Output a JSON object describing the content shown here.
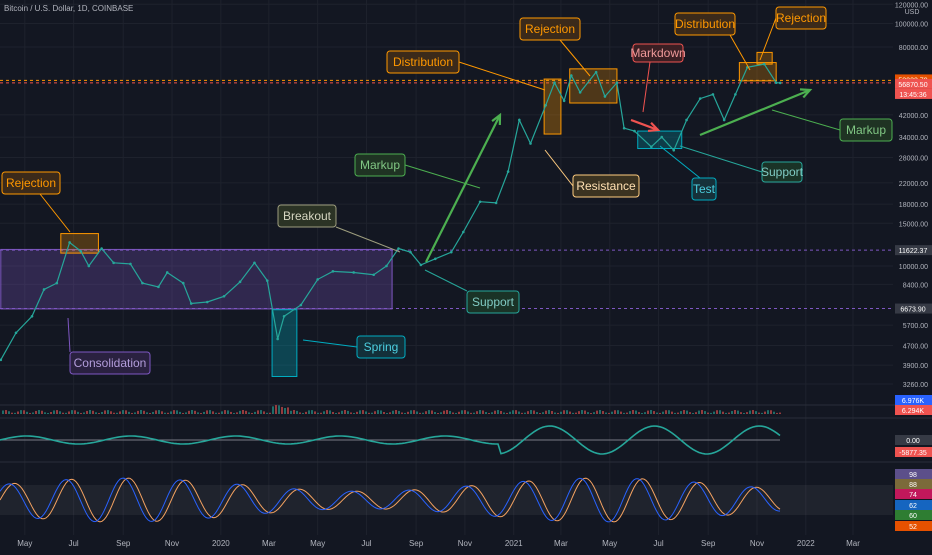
{
  "header": {
    "symbol_line": "Bitcoin / U.S. Dollar, 1D, COINBASE",
    "currency": "USD"
  },
  "colors": {
    "background": "#131722",
    "grid": "#1e222d",
    "candle_up": "#26a69a",
    "candle_down": "#ef5350",
    "consolidation": "#7e57c2",
    "spring": "#00acc1",
    "orange": "#ff9800",
    "green_arrow": "#4caf50",
    "price_line": "#ef5350"
  },
  "chart_data": [
    {
      "type": "line",
      "title": "Bitcoin / U.S. Dollar, 1D, COINBASE",
      "y_scale": "log",
      "ylim": [
        2800,
        125000
      ],
      "x_ticks": [
        "May",
        "Jul",
        "Sep",
        "Nov",
        "2020",
        "Mar",
        "May",
        "Jul",
        "Sep",
        "Nov",
        "2021",
        "Mar",
        "May",
        "Jul",
        "Sep",
        "Nov",
        "2022",
        "Mar"
      ],
      "y_ticks": [
        "120000.00",
        "100000.00",
        "80000.00",
        "58233.79",
        "56870.50",
        "42000.00",
        "34000.00",
        "28000.00",
        "22000.00",
        "18000.00",
        "15000.00",
        "11622.37",
        "10000.00",
        "8400.00",
        "6673.90",
        "5700.00",
        "4700.00",
        "3900.00",
        "3260.00"
      ],
      "series": [
        {
          "values": [
            {
              "x": "2019-04-01",
              "y": 4100
            },
            {
              "x": "2019-04-20",
              "y": 5300
            },
            {
              "x": "2019-05-10",
              "y": 6200
            },
            {
              "x": "2019-05-25",
              "y": 8000
            },
            {
              "x": "2019-06-10",
              "y": 8500
            },
            {
              "x": "2019-06-26",
              "y": 12500
            },
            {
              "x": "2019-07-10",
              "y": 11500
            },
            {
              "x": "2019-07-20",
              "y": 10000
            },
            {
              "x": "2019-08-05",
              "y": 11800
            },
            {
              "x": "2019-08-20",
              "y": 10300
            },
            {
              "x": "2019-09-10",
              "y": 10200
            },
            {
              "x": "2019-09-25",
              "y": 8500
            },
            {
              "x": "2019-10-15",
              "y": 8200
            },
            {
              "x": "2019-10-26",
              "y": 9400
            },
            {
              "x": "2019-11-15",
              "y": 8500
            },
            {
              "x": "2019-11-25",
              "y": 7000
            },
            {
              "x": "2019-12-15",
              "y": 7100
            },
            {
              "x": "2020-01-05",
              "y": 7500
            },
            {
              "x": "2020-01-25",
              "y": 8600
            },
            {
              "x": "2020-02-12",
              "y": 10300
            },
            {
              "x": "2020-02-28",
              "y": 8700
            },
            {
              "x": "2020-03-12",
              "y": 5000
            },
            {
              "x": "2020-03-20",
              "y": 6200
            },
            {
              "x": "2020-04-10",
              "y": 6900
            },
            {
              "x": "2020-05-01",
              "y": 8800
            },
            {
              "x": "2020-05-20",
              "y": 9500
            },
            {
              "x": "2020-06-15",
              "y": 9400
            },
            {
              "x": "2020-07-10",
              "y": 9200
            },
            {
              "x": "2020-07-26",
              "y": 10000
            },
            {
              "x": "2020-08-10",
              "y": 11800
            },
            {
              "x": "2020-08-25",
              "y": 11400
            },
            {
              "x": "2020-09-07",
              "y": 10100
            },
            {
              "x": "2020-09-25",
              "y": 10700
            },
            {
              "x": "2020-10-15",
              "y": 11400
            },
            {
              "x": "2020-10-30",
              "y": 13800
            },
            {
              "x": "2020-11-20",
              "y": 18400
            },
            {
              "x": "2020-12-10",
              "y": 18200
            },
            {
              "x": "2020-12-25",
              "y": 24500
            },
            {
              "x": "2021-01-08",
              "y": 40000
            },
            {
              "x": "2021-01-22",
              "y": 32000
            },
            {
              "x": "2021-02-10",
              "y": 46000
            },
            {
              "x": "2021-02-21",
              "y": 57000
            },
            {
              "x": "2021-03-05",
              "y": 48000
            },
            {
              "x": "2021-03-14",
              "y": 61000
            },
            {
              "x": "2021-03-25",
              "y": 52000
            },
            {
              "x": "2021-04-14",
              "y": 63000
            },
            {
              "x": "2021-04-25",
              "y": 50000
            },
            {
              "x": "2021-05-10",
              "y": 57000
            },
            {
              "x": "2021-05-19",
              "y": 37000
            },
            {
              "x": "2021-06-01",
              "y": 36000
            },
            {
              "x": "2021-06-22",
              "y": 31000
            },
            {
              "x": "2021-07-05",
              "y": 34000
            },
            {
              "x": "2021-07-20",
              "y": 30000
            },
            {
              "x": "2021-08-05",
              "y": 40000
            },
            {
              "x": "2021-08-22",
              "y": 49000
            },
            {
              "x": "2021-09-07",
              "y": 51000
            },
            {
              "x": "2021-09-21",
              "y": 40000
            },
            {
              "x": "2021-10-05",
              "y": 51000
            },
            {
              "x": "2021-10-20",
              "y": 66000
            },
            {
              "x": "2021-11-10",
              "y": 68000
            },
            {
              "x": "2021-11-25",
              "y": 57000
            },
            {
              "x": "2021-11-30",
              "y": 56870
            }
          ]
        }
      ]
    },
    {
      "type": "bar",
      "title": "",
      "values": [
        6.976,
        6.294
      ],
      "labels": [
        "6.976K",
        "6.294K"
      ]
    },
    {
      "type": "area",
      "title": "",
      "labels": [
        "0.00",
        "-5877.35"
      ]
    },
    {
      "type": "line",
      "title": "",
      "labels": [
        "98",
        "88",
        "74",
        "62",
        "60",
        "52"
      ]
    }
  ],
  "price_labels": [
    {
      "text": "58233.79",
      "bg": "#e65100"
    },
    {
      "text": "56870.50",
      "bg": "#ef5350"
    },
    {
      "text": "13:45:36",
      "bg": "#ef5350"
    },
    {
      "text": "11622.37",
      "bg": "#363a45"
    },
    {
      "text": "6673.90",
      "bg": "#363a45"
    }
  ],
  "indicator_labels": [
    {
      "text": "6.976K",
      "bg": "#2962ff"
    },
    {
      "text": "6.294K",
      "bg": "#ef5350"
    },
    {
      "text": "0.00",
      "bg": "#363a45"
    },
    {
      "text": "-5877.35",
      "bg": "#ef5350"
    },
    {
      "text": "98",
      "bg": "#5c4f8a"
    },
    {
      "text": "88",
      "bg": "#7b6a3a"
    },
    {
      "text": "74",
      "bg": "#c2185b"
    },
    {
      "text": "62",
      "bg": "#1565c0"
    },
    {
      "text": "60",
      "bg": "#2e7d32"
    },
    {
      "text": "52",
      "bg": "#e65100"
    }
  ],
  "annotations": {
    "rejection_1": "Rejection",
    "consolidation": "Consolidation",
    "breakout": "Breakout",
    "markup_1": "Markup",
    "spring": "Spring",
    "support_1": "Support",
    "distribution_1": "Distribution",
    "rejection_2": "Rejection",
    "resistance": "Resistance",
    "markdown": "Markdown",
    "test": "Test",
    "support_2": "Support",
    "distribution_2": "Distribution",
    "rejection_3": "Rejection",
    "markup_2": "Markup"
  }
}
